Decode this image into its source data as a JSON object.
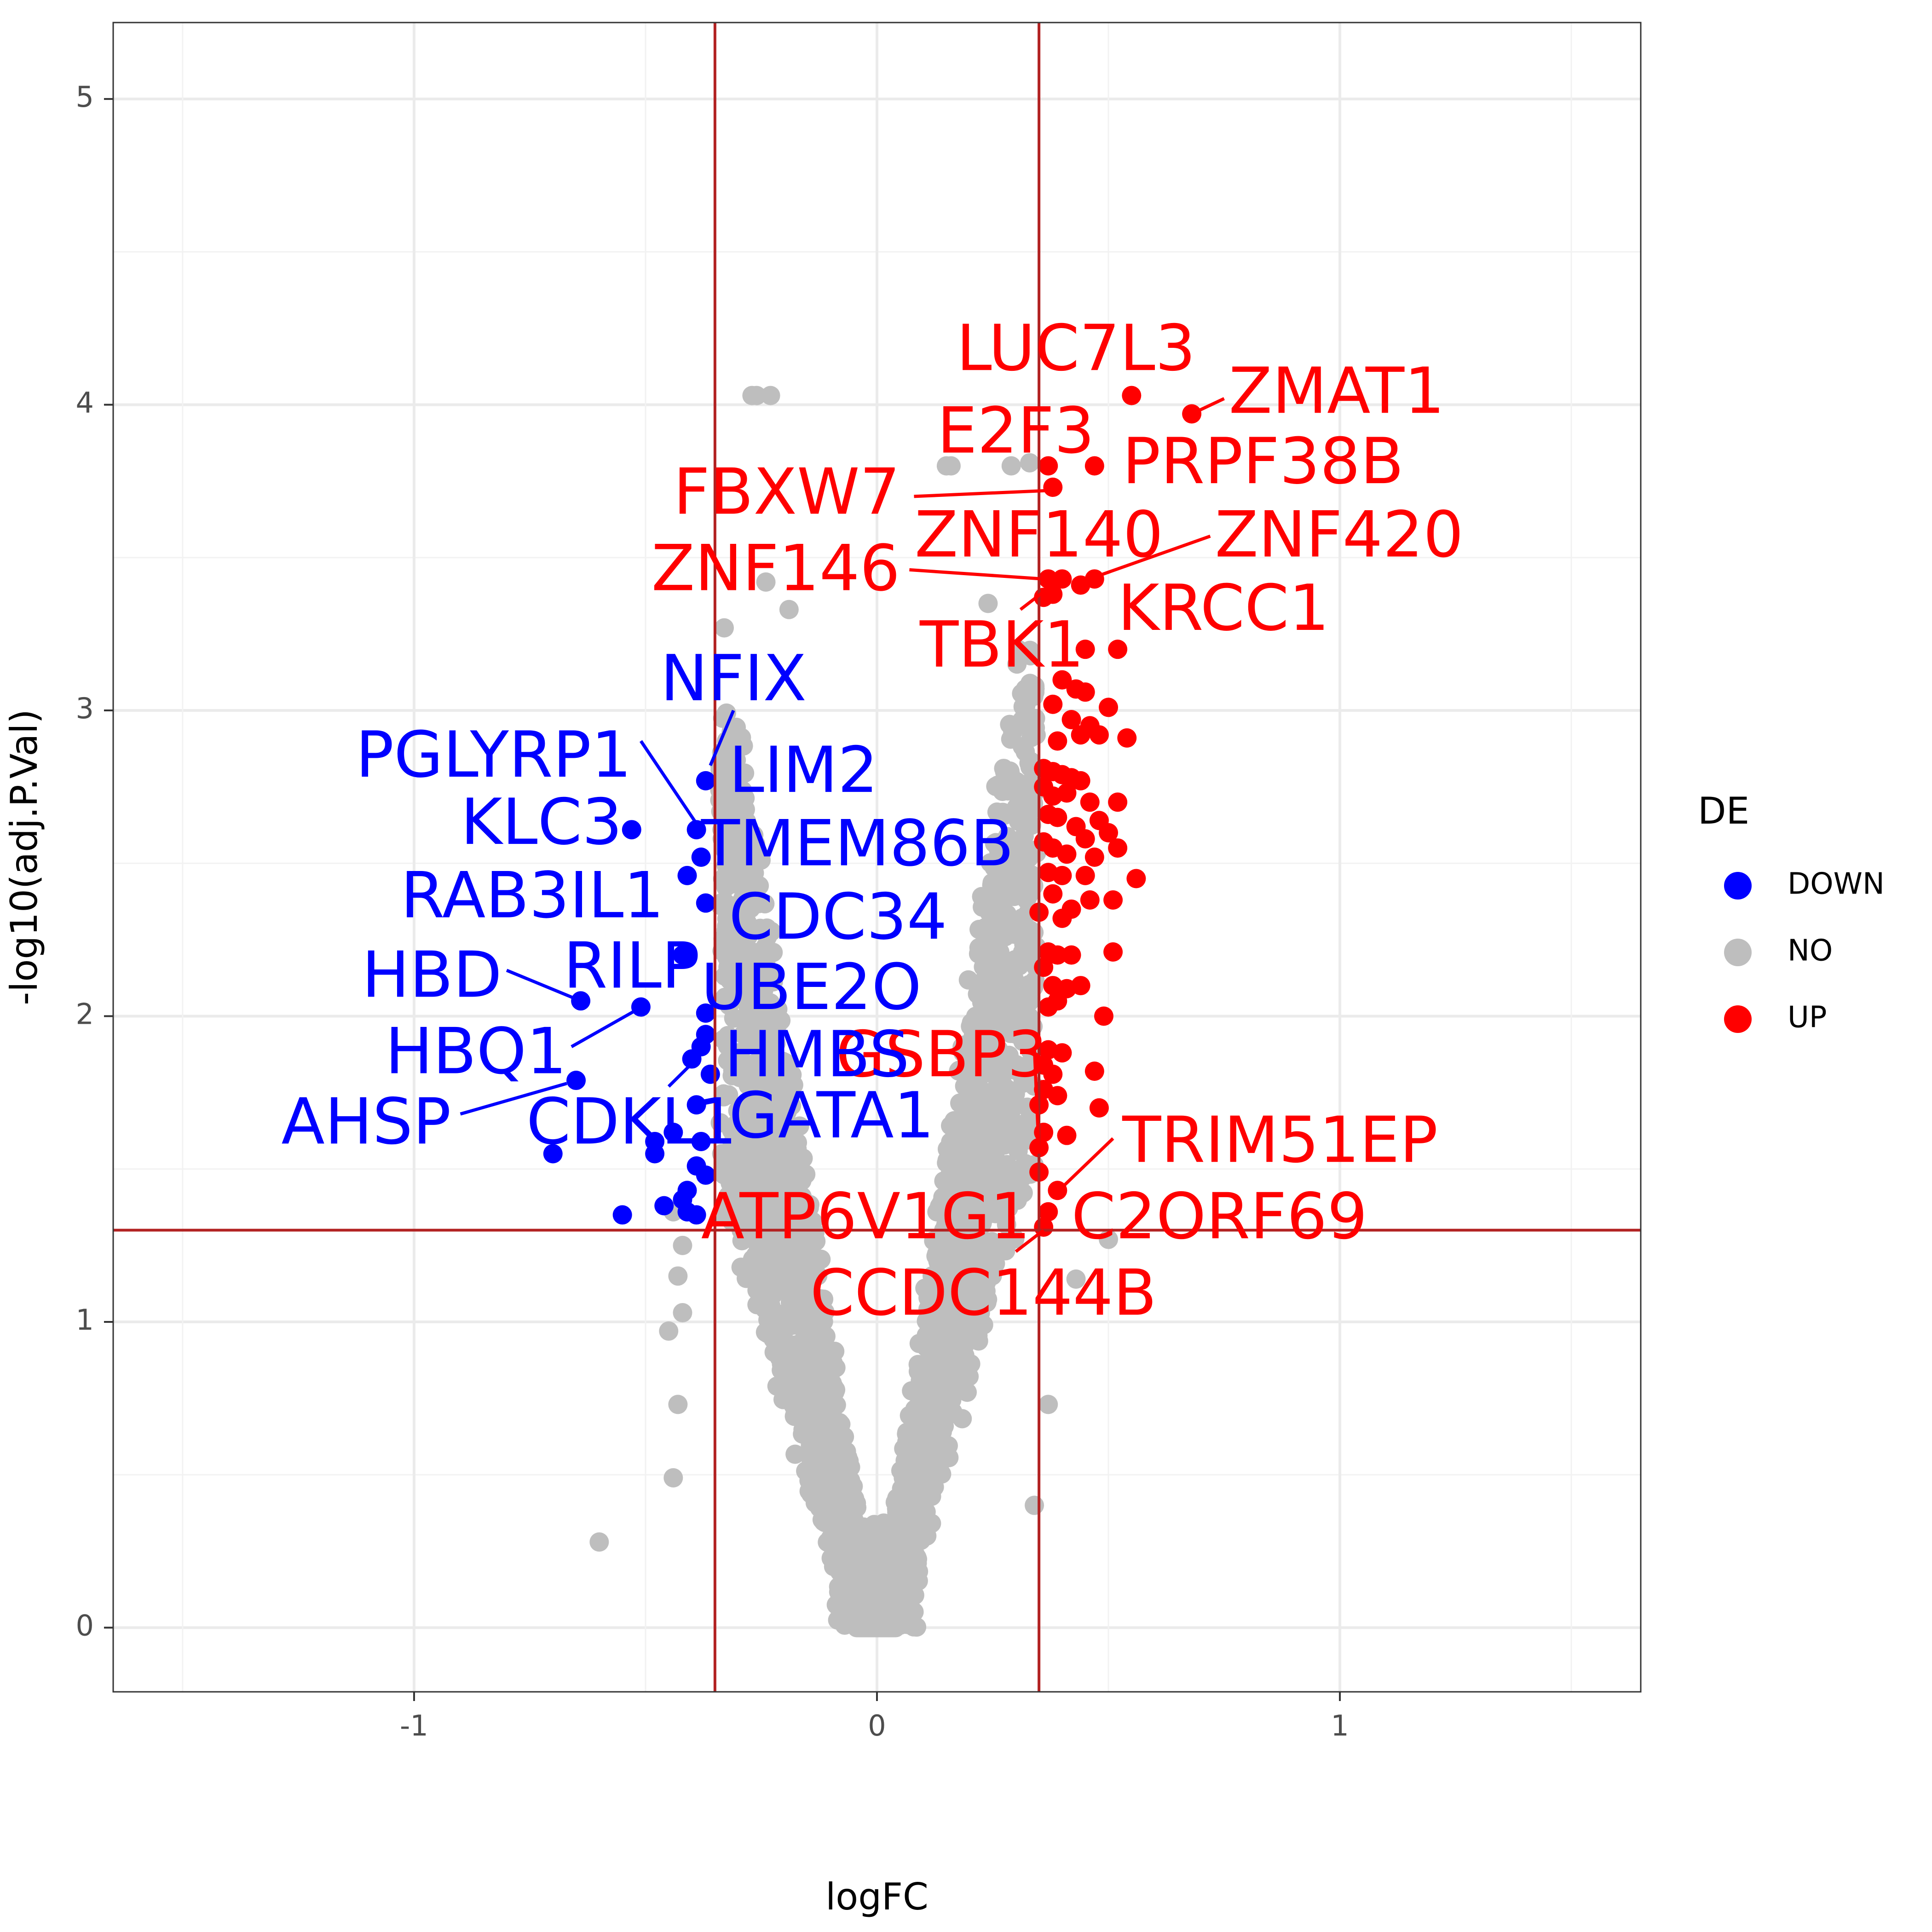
{
  "chart_data": {
    "type": "scatter",
    "xlabel": "logFC",
    "ylabel": "-log10(adj.P.Val)",
    "xlim": [
      -1.65,
      1.65
    ],
    "ylim": [
      -0.21,
      5.25
    ],
    "x_ticks": [
      -1,
      0,
      1
    ],
    "x_tick_labels": [
      "-1",
      "0",
      "1"
    ],
    "y_ticks": [
      0,
      1,
      2,
      3,
      4,
      5
    ],
    "y_tick_labels": [
      "0",
      "1",
      "2",
      "3",
      "4",
      "5"
    ],
    "grid": true,
    "thresholds": {
      "logFC": [
        -0.35,
        0.35
      ],
      "neg_log10_p": 1.3,
      "color": "#b22222"
    },
    "legend": {
      "title": "DE",
      "position": "right",
      "entries": [
        {
          "label": "DOWN",
          "color": "#0000ff"
        },
        {
          "label": "NO",
          "color": "#bebebe"
        },
        {
          "label": "UP",
          "color": "#ff0000"
        }
      ]
    },
    "series": [
      {
        "name": "DOWN",
        "color": "#0000ff",
        "points": [
          [
            -0.37,
            2.77
          ],
          [
            -0.39,
            2.61
          ],
          [
            -0.53,
            2.61
          ],
          [
            -0.38,
            2.52
          ],
          [
            -0.41,
            2.46
          ],
          [
            -0.37,
            2.37
          ],
          [
            -0.42,
            2.2
          ],
          [
            -0.64,
            2.05
          ],
          [
            -0.51,
            2.03
          ],
          [
            -0.37,
            2.01
          ],
          [
            -0.37,
            1.94
          ],
          [
            -0.38,
            1.9
          ],
          [
            -0.4,
            1.86
          ],
          [
            -0.36,
            1.81
          ],
          [
            -0.65,
            1.79
          ],
          [
            -0.39,
            1.71
          ],
          [
            -0.44,
            1.62
          ],
          [
            -0.38,
            1.59
          ],
          [
            -0.48,
            1.59
          ],
          [
            -0.48,
            1.55
          ],
          [
            -0.7,
            1.55
          ],
          [
            -0.39,
            1.51
          ],
          [
            -0.37,
            1.48
          ],
          [
            -0.41,
            1.43
          ],
          [
            -0.46,
            1.38
          ],
          [
            -0.42,
            1.4
          ],
          [
            -0.55,
            1.35
          ],
          [
            -0.39,
            1.35
          ],
          [
            -0.41,
            1.36
          ]
        ]
      },
      {
        "name": "UP",
        "color": "#ff0000",
        "points": [
          [
            0.55,
            4.03
          ],
          [
            0.68,
            3.97
          ],
          [
            0.37,
            3.8
          ],
          [
            0.47,
            3.8
          ],
          [
            0.38,
            3.73
          ],
          [
            0.37,
            3.43
          ],
          [
            0.4,
            3.43
          ],
          [
            0.44,
            3.41
          ],
          [
            0.47,
            3.43
          ],
          [
            0.36,
            3.37
          ],
          [
            0.38,
            3.38
          ],
          [
            0.45,
            3.2
          ],
          [
            0.52,
            3.2
          ],
          [
            0.4,
            3.1
          ],
          [
            0.43,
            3.07
          ],
          [
            0.45,
            3.06
          ],
          [
            0.38,
            3.02
          ],
          [
            0.5,
            3.01
          ],
          [
            0.42,
            2.97
          ],
          [
            0.46,
            2.95
          ],
          [
            0.48,
            2.92
          ],
          [
            0.54,
            2.91
          ],
          [
            0.39,
            2.9
          ],
          [
            0.44,
            2.92
          ],
          [
            0.36,
            2.81
          ],
          [
            0.38,
            2.8
          ],
          [
            0.4,
            2.79
          ],
          [
            0.42,
            2.78
          ],
          [
            0.44,
            2.77
          ],
          [
            0.36,
            2.75
          ],
          [
            0.38,
            2.72
          ],
          [
            0.41,
            2.73
          ],
          [
            0.46,
            2.7
          ],
          [
            0.52,
            2.7
          ],
          [
            0.37,
            2.66
          ],
          [
            0.39,
            2.65
          ],
          [
            0.48,
            2.64
          ],
          [
            0.43,
            2.62
          ],
          [
            0.45,
            2.58
          ],
          [
            0.5,
            2.6
          ],
          [
            0.36,
            2.57
          ],
          [
            0.38,
            2.55
          ],
          [
            0.52,
            2.55
          ],
          [
            0.41,
            2.53
          ],
          [
            0.47,
            2.52
          ],
          [
            0.37,
            2.47
          ],
          [
            0.4,
            2.46
          ],
          [
            0.45,
            2.46
          ],
          [
            0.56,
            2.45
          ],
          [
            0.38,
            2.4
          ],
          [
            0.42,
            2.35
          ],
          [
            0.46,
            2.38
          ],
          [
            0.51,
            2.38
          ],
          [
            0.35,
            2.34
          ],
          [
            0.4,
            2.32
          ],
          [
            0.37,
            2.21
          ],
          [
            0.39,
            2.2
          ],
          [
            0.42,
            2.2
          ],
          [
            0.51,
            2.21
          ],
          [
            0.36,
            2.16
          ],
          [
            0.38,
            2.1
          ],
          [
            0.41,
            2.09
          ],
          [
            0.44,
            2.1
          ],
          [
            0.37,
            2.03
          ],
          [
            0.39,
            2.05
          ],
          [
            0.49,
            2.0
          ],
          [
            0.37,
            1.89
          ],
          [
            0.4,
            1.88
          ],
          [
            0.36,
            1.84
          ],
          [
            0.38,
            1.81
          ],
          [
            0.47,
            1.82
          ],
          [
            0.36,
            1.76
          ],
          [
            0.39,
            1.74
          ],
          [
            0.48,
            1.7
          ],
          [
            0.35,
            1.71
          ],
          [
            0.36,
            1.62
          ],
          [
            0.41,
            1.61
          ],
          [
            0.35,
            1.57
          ],
          [
            0.35,
            1.49
          ],
          [
            0.39,
            1.43
          ],
          [
            0.37,
            1.36
          ],
          [
            0.36,
            1.31
          ]
        ]
      }
    ],
    "background_points": {
      "name": "NO",
      "color": "#bebebe",
      "fixed": [
        [
          -0.27,
          4.03
        ],
        [
          -0.26,
          4.03
        ],
        [
          -0.23,
          4.03
        ],
        [
          0.15,
          3.8
        ],
        [
          0.16,
          3.8
        ],
        [
          0.29,
          3.8
        ],
        [
          0.33,
          3.81
        ],
        [
          -0.24,
          3.42
        ],
        [
          -0.19,
          3.33
        ],
        [
          -0.33,
          3.27
        ],
        [
          0.24,
          3.35
        ],
        [
          -0.6,
          0.28
        ],
        [
          -0.44,
          0.49
        ],
        [
          -0.43,
          0.73
        ],
        [
          0.34,
          0.4
        ],
        [
          -0.45,
          0.97
        ],
        [
          -0.42,
          1.03
        ],
        [
          -0.43,
          1.15
        ],
        [
          0.5,
          1.27
        ],
        [
          0.43,
          1.14
        ],
        [
          0.37,
          0.73
        ],
        [
          -0.42,
          1.25
        ],
        [
          -0.44,
          1.36
        ]
      ]
    },
    "labels": [
      {
        "text": "LUC7L3",
        "color": "#ff0000",
        "x": 0.43,
        "y": 4.17,
        "anchor": "middle",
        "line": null
      },
      {
        "text": "ZMAT1",
        "color": "#ff0000",
        "x": 0.76,
        "y": 4.03,
        "anchor": "start",
        "line": [
          0.68,
          3.97,
          0.75,
          4.02
        ]
      },
      {
        "text": "E2F3",
        "color": "#ff0000",
        "x": 0.3,
        "y": 3.9,
        "anchor": "middle",
        "line": null
      },
      {
        "text": "PRPF38B",
        "color": "#ff0000",
        "x": 0.53,
        "y": 3.8,
        "anchor": "start",
        "line": null
      },
      {
        "text": "FBXW7",
        "color": "#ff0000",
        "x": 0.05,
        "y": 3.7,
        "anchor": "end",
        "line": [
          0.08,
          3.7,
          0.38,
          3.72
        ]
      },
      {
        "text": "ZNF140",
        "color": "#ff0000",
        "x": 0.35,
        "y": 3.56,
        "anchor": "middle",
        "line": null
      },
      {
        "text": "ZNF420",
        "color": "#ff0000",
        "x": 0.73,
        "y": 3.56,
        "anchor": "start",
        "line": [
          0.72,
          3.57,
          0.44,
          3.42
        ]
      },
      {
        "text": "ZNF146",
        "color": "#ff0000",
        "x": 0.05,
        "y": 3.45,
        "anchor": "end",
        "line": [
          0.07,
          3.46,
          0.36,
          3.43
        ]
      },
      {
        "text": "KRCC1",
        "color": "#ff0000",
        "x": 0.52,
        "y": 3.32,
        "anchor": "start",
        "line": null
      },
      {
        "text": "TBK1",
        "color": "#ff0000",
        "x": 0.27,
        "y": 3.2,
        "anchor": "middle",
        "line": [
          0.31,
          3.33,
          0.37,
          3.4
        ]
      },
      {
        "text": "NFIX",
        "color": "#0000ff",
        "x": -0.31,
        "y": 3.09,
        "anchor": "middle",
        "line": [
          -0.31,
          3.0,
          -0.36,
          2.82
        ]
      },
      {
        "text": "PGLYRP1",
        "color": "#0000ff",
        "x": -0.53,
        "y": 2.84,
        "anchor": "end",
        "line": [
          -0.51,
          2.9,
          -0.39,
          2.63
        ]
      },
      {
        "text": "LIM2",
        "color": "#0000ff",
        "x": -0.32,
        "y": 2.79,
        "anchor": "start",
        "line": null
      },
      {
        "text": "KLC3",
        "color": "#0000ff",
        "x": -0.55,
        "y": 2.62,
        "anchor": "end",
        "line": null
      },
      {
        "text": "TMEM86B",
        "color": "#0000ff",
        "x": -0.38,
        "y": 2.55,
        "anchor": "start",
        "line": null
      },
      {
        "text": "RAB3IL1",
        "color": "#0000ff",
        "x": -0.46,
        "y": 2.38,
        "anchor": "end",
        "line": null
      },
      {
        "text": "CDC34",
        "color": "#0000ff",
        "x": -0.32,
        "y": 2.31,
        "anchor": "start",
        "line": null
      },
      {
        "text": "HBD",
        "color": "#0000ff",
        "x": -0.81,
        "y": 2.12,
        "anchor": "end",
        "line": [
          -0.8,
          2.15,
          -0.64,
          2.05
        ]
      },
      {
        "text": "RILP",
        "color": "#0000ff",
        "x": -0.53,
        "y": 2.15,
        "anchor": "middle",
        "line": null
      },
      {
        "text": "UBE2O",
        "color": "#0000ff",
        "x": -0.38,
        "y": 2.08,
        "anchor": "start",
        "line": null
      },
      {
        "text": "HBQ1",
        "color": "#0000ff",
        "x": -0.67,
        "y": 1.87,
        "anchor": "end",
        "line": [
          -0.66,
          1.9,
          -0.52,
          2.02
        ]
      },
      {
        "text": "CDKL1",
        "color": "#0000ff",
        "x": -0.53,
        "y": 1.64,
        "anchor": "middle",
        "line": [
          -0.45,
          1.77,
          -0.39,
          1.86
        ]
      },
      {
        "text": "GSBP3",
        "color": "#ff0000",
        "x": 0.14,
        "y": 1.86,
        "anchor": "middle",
        "line": null
      },
      {
        "text": "HMBS",
        "color": "#0000ff",
        "x": -0.33,
        "y": 1.86,
        "anchor": "start",
        "line": null
      },
      {
        "text": "AHSP",
        "color": "#0000ff",
        "x": -0.92,
        "y": 1.64,
        "anchor": "end",
        "line": [
          -0.9,
          1.68,
          -0.67,
          1.78
        ]
      },
      {
        "text": "GATA1",
        "color": "#0000ff",
        "x": -0.32,
        "y": 1.66,
        "anchor": "start",
        "line": null
      },
      {
        "text": "TRIM51EP",
        "color": "#ff0000",
        "x": 0.53,
        "y": 1.58,
        "anchor": "start",
        "line": [
          0.51,
          1.6,
          0.4,
          1.44
        ]
      },
      {
        "text": "ATP6V1G1",
        "color": "#ff0000",
        "x": -0.38,
        "y": 1.33,
        "anchor": "start",
        "line": null
      },
      {
        "text": "C2ORF69",
        "color": "#ff0000",
        "x": 0.42,
        "y": 1.33,
        "anchor": "start",
        "line": null
      },
      {
        "text": "CCDC144B",
        "color": "#ff0000",
        "x": 0.23,
        "y": 1.08,
        "anchor": "middle",
        "line": [
          0.3,
          1.23,
          0.36,
          1.3
        ]
      },
      {
        "text": "",
        "color": "#ff0000",
        "x": 0,
        "y": 0,
        "anchor": "start",
        "line": [
          0.35,
          1.55,
          0.34,
          1.9
        ]
      }
    ]
  }
}
